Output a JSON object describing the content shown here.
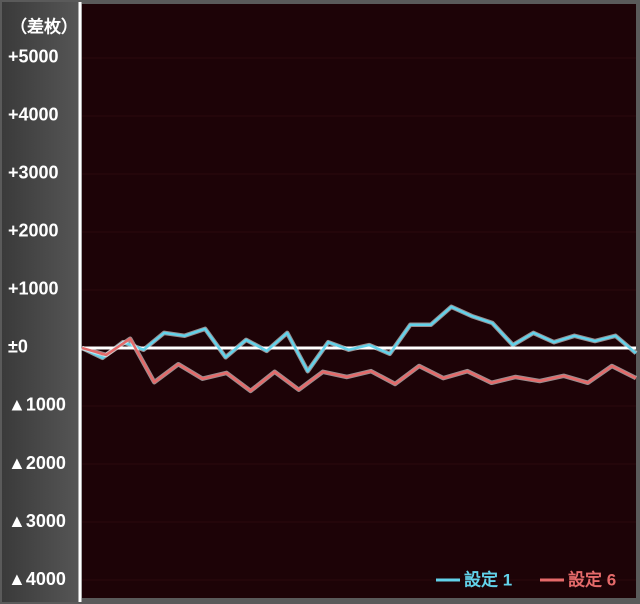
{
  "chart_data": {
    "type": "line",
    "y_label": "（差枚）",
    "ylim": [
      -4310,
      5930
    ],
    "yticks": [
      {
        "value": 5000,
        "label": "+5000"
      },
      {
        "value": 4000,
        "label": "+4000"
      },
      {
        "value": 3000,
        "label": "+3000"
      },
      {
        "value": 2000,
        "label": "+2000"
      },
      {
        "value": 1000,
        "label": "+1000"
      },
      {
        "value": 0,
        "label": "±0"
      },
      {
        "value": -1000,
        "label": "▲1000"
      },
      {
        "value": -2000,
        "label": "▲2000"
      },
      {
        "value": -3000,
        "label": "▲3000"
      },
      {
        "value": -4000,
        "label": "▲4000"
      }
    ],
    "series": [
      {
        "name": "設定 1",
        "color": "#62d2ea",
        "xlim": [
          0,
          27
        ],
        "x": [
          0,
          1,
          2,
          3,
          4,
          5,
          6,
          7,
          8,
          9,
          10,
          11,
          12,
          13,
          14,
          15,
          16,
          17,
          18,
          19,
          20,
          21,
          22,
          23,
          24,
          25,
          26,
          27
        ],
        "values": [
          0,
          -170,
          100,
          -30,
          260,
          210,
          330,
          -160,
          140,
          -50,
          260,
          -400,
          100,
          -30,
          50,
          -100,
          400,
          400,
          710,
          550,
          430,
          50,
          260,
          100,
          210,
          120,
          210,
          -90
        ]
      },
      {
        "name": "設定 6",
        "color": "#e56a6a",
        "xlim": [
          0,
          23
        ],
        "x": [
          0,
          1,
          2,
          3,
          4,
          5,
          6,
          7,
          8,
          9,
          10,
          11,
          12,
          13,
          14,
          15,
          16,
          17,
          18,
          19,
          20,
          21,
          22,
          23
        ],
        "values": [
          0,
          -120,
          160,
          -590,
          -280,
          -530,
          -430,
          -740,
          -410,
          -720,
          -410,
          -500,
          -400,
          -620,
          -310,
          -520,
          -400,
          -600,
          -500,
          -570,
          -480,
          -600,
          -310,
          -520
        ]
      }
    ]
  }
}
